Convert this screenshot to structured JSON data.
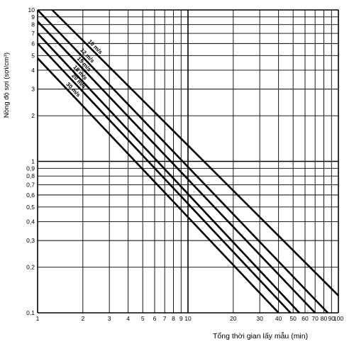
{
  "chart_data": {
    "type": "line",
    "title": "",
    "xlabel": "Tổng thời gian lấy mẫu (min)",
    "ylabel": "Nồng độ sợi (sợi/cm³)",
    "xscale": "log",
    "yscale": "log",
    "xlim": [
      1,
      100
    ],
    "ylim": [
      0.1,
      10
    ],
    "grid": true,
    "x_ticks": [
      1,
      2,
      3,
      4,
      5,
      6,
      7,
      8,
      9,
      10,
      20,
      30,
      40,
      50,
      60,
      70,
      80,
      90,
      100
    ],
    "x_tick_labels": [
      "1",
      "2",
      "3",
      "4",
      "5",
      "6",
      "7",
      "8",
      "9",
      "10",
      "20",
      "30",
      "40",
      "50",
      "60",
      "70",
      "80",
      "90",
      "100"
    ],
    "y_ticks": [
      0.1,
      0.2,
      0.3,
      0.4,
      0.5,
      0.6,
      0.7,
      0.8,
      0.9,
      1,
      2,
      3,
      4,
      5,
      6,
      7,
      8,
      9,
      10
    ],
    "y_tick_labels": [
      "0,1",
      "0,2",
      "0,3",
      "0,4",
      "0,5",
      "0,6",
      "0,7",
      "0,8",
      "0,9",
      "1",
      "2",
      "3",
      "4",
      "5",
      "6",
      "7",
      "8",
      "9",
      "10"
    ],
    "series": [
      {
        "name": "10 m/s",
        "x": [
          1.25,
          100
        ],
        "y": [
          10,
          0.13
        ]
      },
      {
        "name": "12 m/s",
        "x": [
          1,
          85
        ],
        "y": [
          10,
          0.1
        ]
      },
      {
        "name": "15 m/s",
        "x": [
          1,
          70
        ],
        "y": [
          8.4,
          0.1
        ]
      },
      {
        "name": "18 m/s",
        "x": [
          1,
          55
        ],
        "y": [
          7.0,
          0.1
        ]
      },
      {
        "name": "20 m/s",
        "x": [
          1,
          48
        ],
        "y": [
          6.0,
          0.1
        ]
      },
      {
        "name": "30 m/s",
        "x": [
          1,
          40
        ],
        "y": [
          4.8,
          0.1
        ]
      }
    ]
  }
}
